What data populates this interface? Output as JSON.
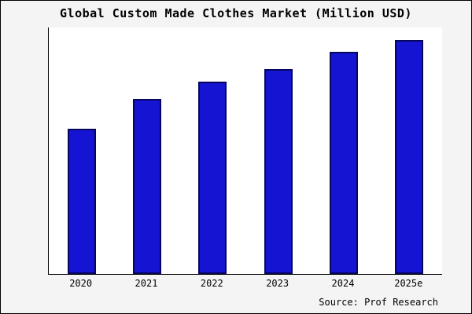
{
  "title": "Global Custom Made Clothes Market (Million USD)",
  "source_text": "Source: Prof Research",
  "colors": {
    "bar_fill": "#1414d2",
    "bar_border": "#06065e",
    "figure_background": "#f4f4f4",
    "plot_background": "#ffffff",
    "axis": "#000000",
    "text": "#000000"
  },
  "chart_data": {
    "type": "bar",
    "title": "Global Custom Made Clothes Market (Million USD)",
    "categories": [
      "2020",
      "2021",
      "2022",
      "2023",
      "2024",
      "2025e"
    ],
    "values": [
      59,
      71,
      78,
      83,
      90,
      95
    ],
    "xlabel": "",
    "ylabel": "",
    "ylim": [
      0,
      100
    ],
    "grid": false,
    "legend": false,
    "caption": "Source: Prof Research"
  }
}
